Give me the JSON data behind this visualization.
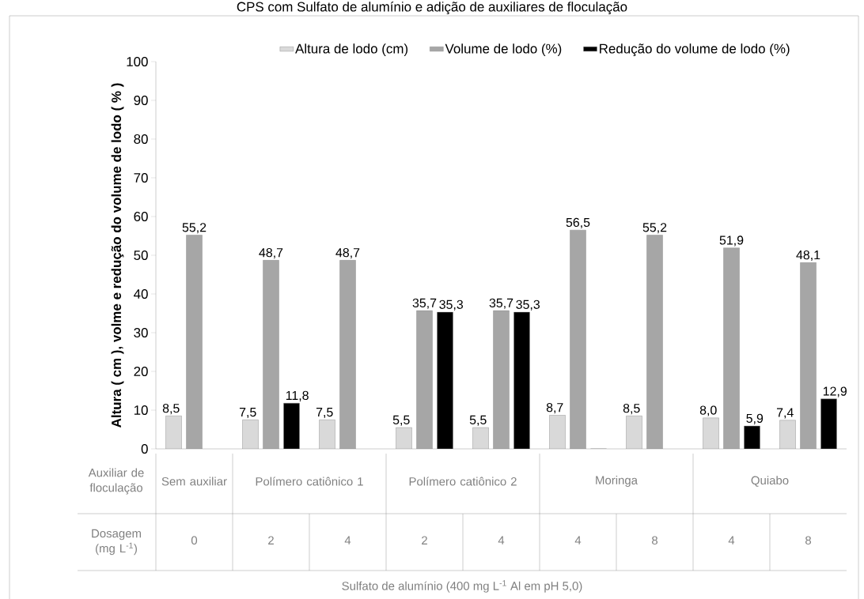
{
  "chart_data": {
    "type": "bar",
    "title": "CPS com Sulfato de alumínio e adição de auxiliares de floculação",
    "ylabel": "Altura ( cm ), volme e redução do volume de lodo ( % )",
    "xlabel": "Sulfato de alumínio (400 mg L$^{-1}$ Al em pH 5,0)",
    "categories": [
      "0",
      "2",
      "4",
      "2",
      "4",
      "4",
      "8",
      "4",
      "8"
    ],
    "annotations": [
      "Auxiliar de floculação",
      "Sem auxiliar",
      "Polímero catiônico 1",
      "Polímero catiônico 2",
      "Moringa",
      "Quiabo",
      "Dosagem (mg L$^{-1}$)"
    ],
    "series": [
      {
        "name": "Altura de lodo (cm)",
        "color": "#d9d9d9",
        "values": [
          8.5,
          7.5,
          7.5,
          5.5,
          5.5,
          8.7,
          8.5,
          8.0,
          7.4
        ],
        "value_labels": [
          "8,5",
          "7,5",
          "7,5",
          "5,5",
          "5,5",
          "8,7",
          "8,5",
          "8,0",
          "7,4"
        ]
      },
      {
        "name": "Volume de lodo (%)",
        "color": "#a6a6a6",
        "values": [
          55.2,
          48.7,
          48.7,
          35.7,
          35.7,
          56.5,
          55.2,
          51.9,
          48.1
        ],
        "value_labels": [
          "55,2",
          "48,7",
          "48,7",
          "35,7",
          "35,7",
          "56,5",
          "55,2",
          "51,9",
          "48,1"
        ]
      },
      {
        "name": "Redução do volume de lodo (%)",
        "color": "#000000",
        "values": [
          null,
          11.8,
          null,
          35.3,
          35.3,
          0,
          null,
          5.9,
          12.9
        ],
        "value_labels": [
          null,
          "11,8",
          null,
          "35,3",
          "35,3",
          null,
          null,
          "5,9",
          "12,9"
        ]
      }
    ],
    "ylim": [
      0,
      100
    ],
    "yticks": [
      0,
      10,
      20,
      30,
      40,
      50,
      60,
      70,
      80,
      90,
      100
    ],
    "legend": "top"
  }
}
